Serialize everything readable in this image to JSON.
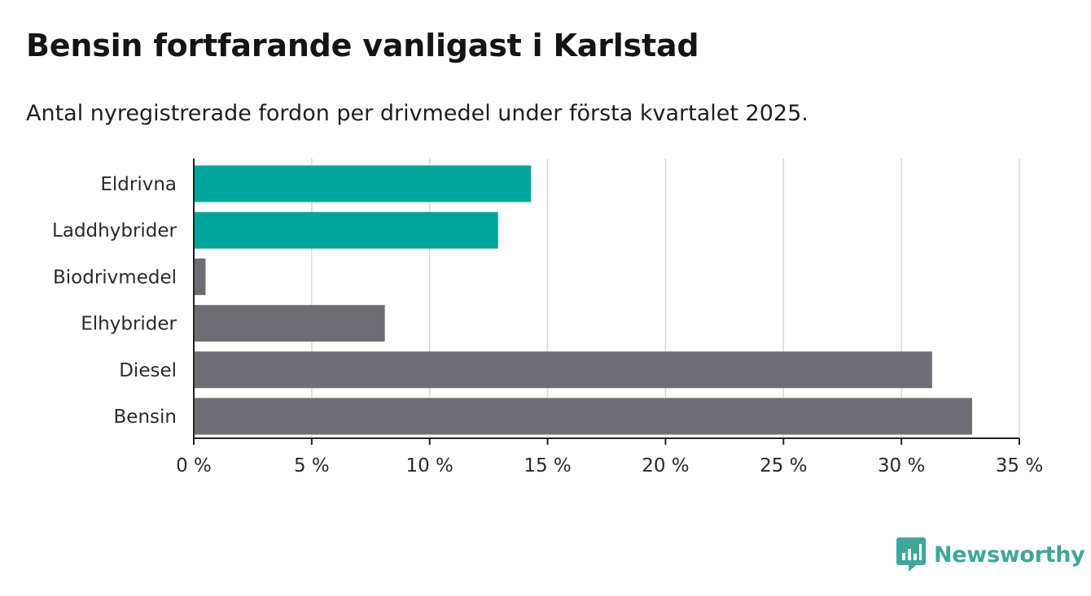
{
  "title": "Bensin fortfarande vanligast i Karlstad",
  "subtitle": "Antal nyregistrerade fordon per drivmedel under första kvartalet 2025.",
  "brand": {
    "name": "Newsworthy",
    "icon": "newsworthy-logo-icon",
    "color": "#3fa79a"
  },
  "colors": {
    "highlight": "#00a59a",
    "default": "#6e6d73",
    "grid": "#d9d9d9",
    "axis": "#222222"
  },
  "chart_data": {
    "type": "bar",
    "orientation": "horizontal",
    "categories": [
      "Eldrivna",
      "Laddhybrider",
      "Biodrivmedel",
      "Elhybrider",
      "Diesel",
      "Bensin"
    ],
    "values": [
      14.3,
      12.9,
      0.5,
      8.1,
      31.3,
      33.0
    ],
    "highlighted": [
      true,
      true,
      false,
      false,
      false,
      false
    ],
    "xlim": [
      0,
      35
    ],
    "xticks": [
      0,
      5,
      10,
      15,
      20,
      25,
      30,
      35
    ],
    "tick_labels": [
      "0 %",
      "5 %",
      "10 %",
      "15 %",
      "20 %",
      "25 %",
      "30 %",
      "35 %"
    ],
    "grid": true
  }
}
